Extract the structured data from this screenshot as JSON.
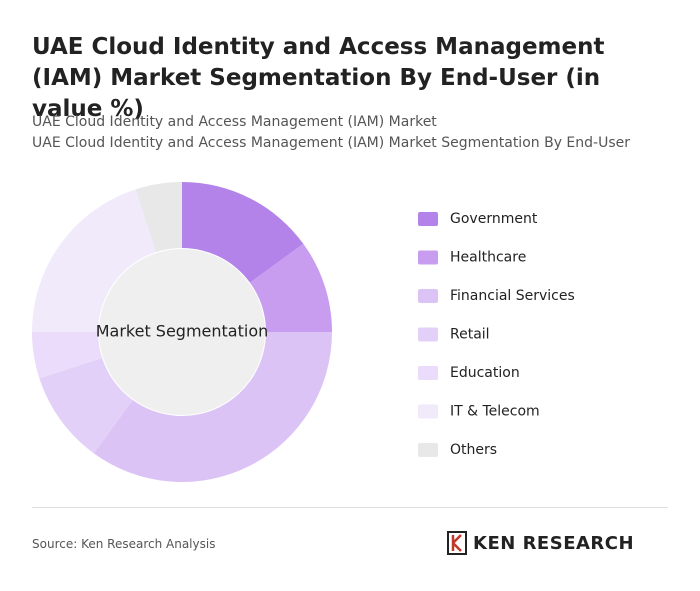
{
  "chart_data": {
    "type": "donut",
    "title": "UAE Cloud Identity and Access Management (IAM) Market Segmentation By End-User (in value %)",
    "subtitle": [
      "UAE Cloud Identity and Access Management (IAM) Market",
      "UAE Cloud Identity and Access Management (IAM) Market Segmentation By End-User"
    ],
    "center_label": "Market Segmentation",
    "categories": [
      "Government",
      "Healthcare",
      "Financial Services",
      "Retail",
      "Education",
      "IT & Telecom",
      "Others"
    ],
    "values": [
      15,
      10,
      35,
      10,
      5,
      20,
      5
    ],
    "colors": [
      "#b383ea",
      "#c89df0",
      "#dcc3f6",
      "#e3d0f8",
      "#eadcfa",
      "#f1eafb",
      "#e8e8e8"
    ],
    "source": "Source: Ken Research Analysis",
    "brand": "KEN RESEARCH"
  }
}
